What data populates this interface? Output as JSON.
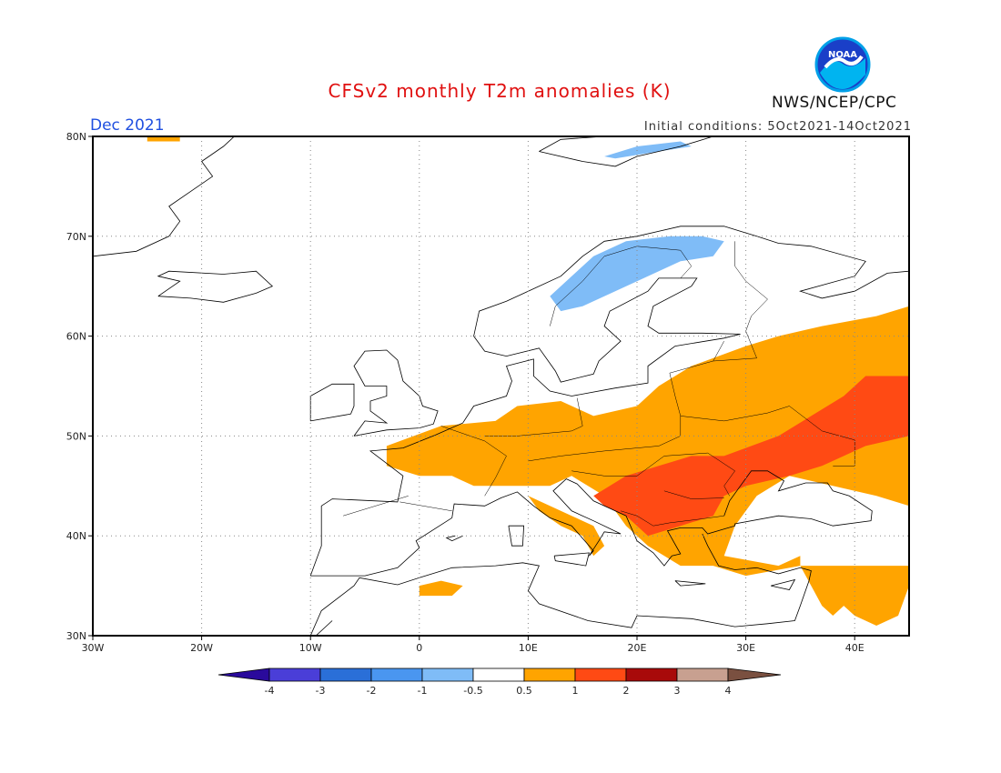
{
  "header": {
    "title": "CFSv2 monthly T2m anomalies (K)",
    "period": "Dec 2021",
    "initial_conditions": "Initial conditions: 5Oct2021-14Oct2021",
    "agency": "NWS/NCEP/CPC",
    "logo_text": "NOAA"
  },
  "map": {
    "lon_range": [
      -30,
      45
    ],
    "lat_range": [
      30,
      80
    ],
    "lon_ticks": [
      {
        "value": -30,
        "label": "30W"
      },
      {
        "value": -20,
        "label": "20W"
      },
      {
        "value": -10,
        "label": "10W"
      },
      {
        "value": 0,
        "label": "0"
      },
      {
        "value": 10,
        "label": "10E"
      },
      {
        "value": 20,
        "label": "20E"
      },
      {
        "value": 30,
        "label": "30E"
      },
      {
        "value": 40,
        "label": "40E"
      }
    ],
    "lat_ticks": [
      {
        "value": 30,
        "label": "30N"
      },
      {
        "value": 40,
        "label": "40N"
      },
      {
        "value": 50,
        "label": "50N"
      },
      {
        "value": 60,
        "label": "60N"
      },
      {
        "value": 70,
        "label": "70N"
      },
      {
        "value": 80,
        "label": "80N"
      }
    ],
    "grid": "dotted"
  },
  "colorbar": {
    "colors": [
      "#2a0a9c",
      "#4a3ed8",
      "#2a6fd8",
      "#4a96f0",
      "#7fbcf7",
      "#ffffff",
      "#ffa400",
      "#ff4a14",
      "#a80a0a",
      "#c8a090",
      "#7a5040"
    ],
    "tick_labels": [
      "-4",
      "-3",
      "-2",
      "-1",
      "-0.5",
      "0.5",
      "1",
      "2",
      "3",
      "4"
    ]
  },
  "anomaly_regions": [
    {
      "level": 1,
      "color": "#ffa400",
      "area": "Western & Central Europe",
      "polygon": [
        [
          -3,
          49
        ],
        [
          2,
          51
        ],
        [
          7,
          51.5
        ],
        [
          9,
          53
        ],
        [
          13,
          53.5
        ],
        [
          16,
          52
        ],
        [
          20,
          53
        ],
        [
          22,
          55
        ],
        [
          25,
          57
        ],
        [
          30,
          59
        ],
        [
          33,
          60
        ],
        [
          37,
          61
        ],
        [
          42,
          62
        ],
        [
          45,
          63
        ],
        [
          45,
          43
        ],
        [
          42,
          44
        ],
        [
          38,
          45
        ],
        [
          34,
          46
        ],
        [
          31,
          44
        ],
        [
          29,
          41
        ],
        [
          28,
          38
        ],
        [
          33,
          37
        ],
        [
          35,
          38
        ],
        [
          35,
          37
        ],
        [
          30,
          36
        ],
        [
          27,
          37
        ],
        [
          24,
          37
        ],
        [
          21,
          39
        ],
        [
          19,
          41
        ],
        [
          17,
          44
        ],
        [
          14,
          46
        ],
        [
          12,
          45
        ],
        [
          9,
          45
        ],
        [
          7,
          45
        ],
        [
          5,
          45
        ],
        [
          3,
          46
        ],
        [
          0,
          46
        ],
        [
          -3,
          47
        ]
      ]
    },
    {
      "level": 1,
      "color": "#ffa400",
      "area": "Italy",
      "polygon": [
        [
          10,
          44
        ],
        [
          12,
          43
        ],
        [
          14,
          42
        ],
        [
          16,
          41
        ],
        [
          17,
          39
        ],
        [
          16,
          38
        ],
        [
          15,
          40
        ],
        [
          13,
          41
        ],
        [
          11,
          42.5
        ]
      ]
    },
    {
      "level": 1,
      "color": "#ffa400",
      "area": "Levant",
      "polygon": [
        [
          35,
          37
        ],
        [
          36,
          35
        ],
        [
          37,
          33
        ],
        [
          38,
          32
        ],
        [
          39,
          33
        ],
        [
          40,
          32
        ],
        [
          42,
          31
        ],
        [
          44,
          32
        ],
        [
          45,
          35
        ],
        [
          45,
          37
        ]
      ]
    },
    {
      "level": 1,
      "color": "#ffa400",
      "area": "Greenland coast",
      "polygon": [
        [
          -25,
          80
        ],
        [
          -22,
          80
        ],
        [
          -22,
          79.5
        ],
        [
          -25,
          79.5
        ]
      ]
    },
    {
      "level": 1,
      "color": "#ffa400",
      "area": "North Africa",
      "polygon": [
        [
          0,
          34
        ],
        [
          3,
          34
        ],
        [
          4,
          35
        ],
        [
          2,
          35.5
        ],
        [
          0,
          35
        ]
      ]
    },
    {
      "level": 2,
      "color": "#ff4a14",
      "area": "Balkans & Black Sea",
      "polygon": [
        [
          16,
          44
        ],
        [
          19,
          46
        ],
        [
          22,
          47
        ],
        [
          25,
          48
        ],
        [
          28,
          48
        ],
        [
          33,
          50
        ],
        [
          36,
          52
        ],
        [
          39,
          54
        ],
        [
          41,
          56
        ],
        [
          45,
          56
        ],
        [
          45,
          50
        ],
        [
          41,
          49
        ],
        [
          37,
          47
        ],
        [
          34,
          46
        ],
        [
          30,
          45
        ],
        [
          28,
          44
        ],
        [
          27,
          42
        ],
        [
          24,
          41
        ],
        [
          21,
          40
        ],
        [
          19,
          42
        ],
        [
          17,
          43
        ]
      ]
    },
    {
      "level": -0.5,
      "color": "#7fbcf7",
      "area": "Scandinavia",
      "polygon": [
        [
          12,
          64
        ],
        [
          14,
          66
        ],
        [
          16,
          68
        ],
        [
          19,
          69.5
        ],
        [
          23,
          70
        ],
        [
          26,
          70
        ],
        [
          28,
          69.5
        ],
        [
          27,
          68
        ],
        [
          24,
          67.5
        ],
        [
          21,
          66
        ],
        [
          18,
          64.5
        ],
        [
          15,
          63
        ],
        [
          13,
          62.5
        ]
      ]
    },
    {
      "level": -0.5,
      "color": "#7fbcf7",
      "area": "Svalbard",
      "polygon": [
        [
          17,
          78
        ],
        [
          20,
          79
        ],
        [
          24,
          79.5
        ],
        [
          25,
          79
        ],
        [
          22,
          78.5
        ],
        [
          18,
          77.8
        ]
      ]
    }
  ]
}
